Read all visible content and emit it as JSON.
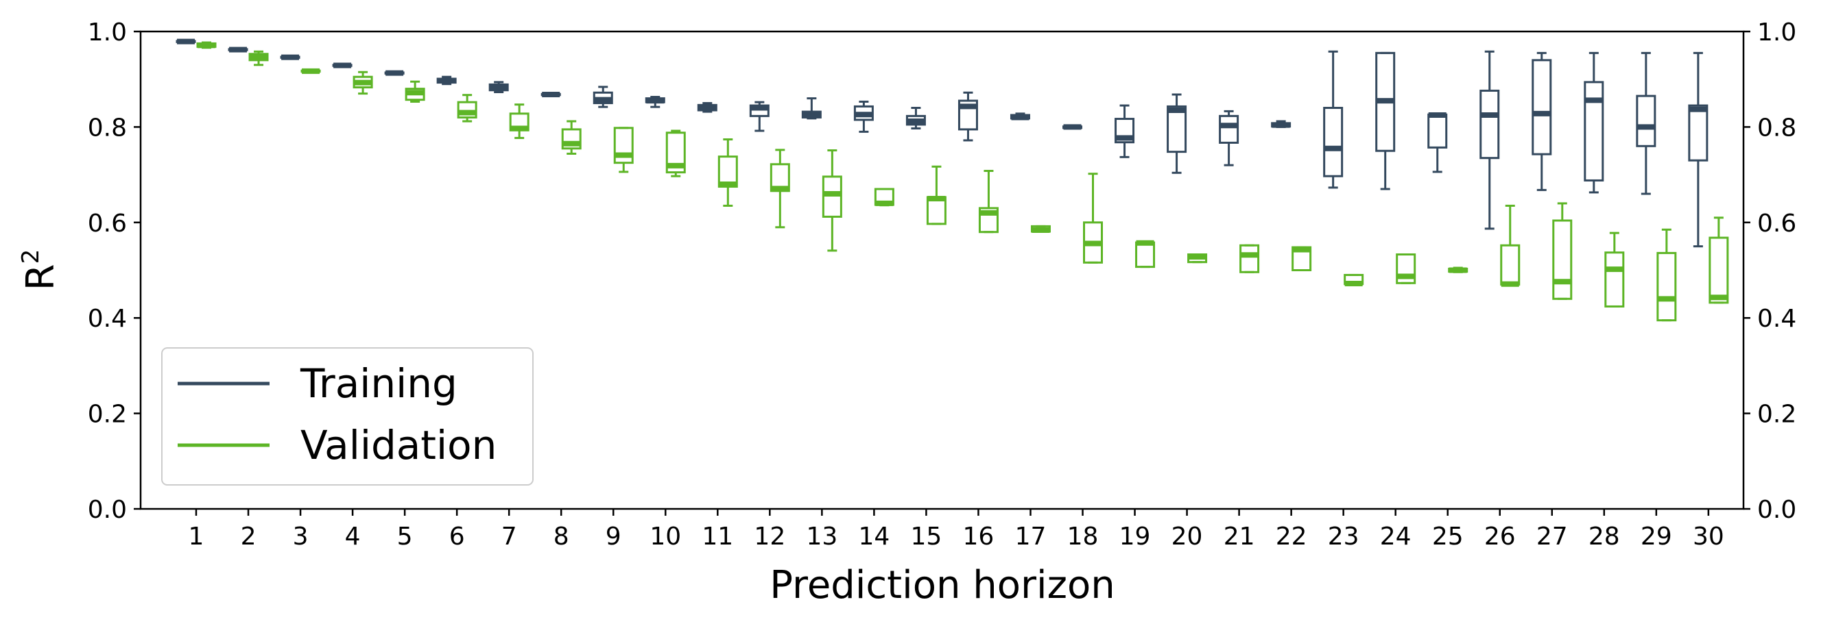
{
  "chart_data": {
    "type": "box",
    "xlabel": "Prediction horizon",
    "ylabel": "R",
    "ylabel_superscript": "2",
    "categories": [
      "1",
      "2",
      "3",
      "4",
      "5",
      "6",
      "7",
      "8",
      "9",
      "10",
      "11",
      "12",
      "13",
      "14",
      "15",
      "16",
      "17",
      "18",
      "19",
      "20",
      "21",
      "22",
      "23",
      "24",
      "25",
      "26",
      "27",
      "28",
      "29",
      "30"
    ],
    "ylim": [
      0.0,
      1.0
    ],
    "yticks": [
      "0.0",
      "0.2",
      "0.4",
      "0.6",
      "0.8",
      "1.0"
    ],
    "right_axis_ticks": true,
    "grid": false,
    "legend_position": "lower-left",
    "series": [
      {
        "name": "Training",
        "color": "#34495e",
        "boxes": [
          {
            "x": "1",
            "min": 0.978,
            "q1": 0.978,
            "median": 0.979,
            "q3": 0.98,
            "max": 0.981
          },
          {
            "x": "2",
            "min": 0.96,
            "q1": 0.961,
            "median": 0.962,
            "q3": 0.963,
            "max": 0.964
          },
          {
            "x": "3",
            "min": 0.944,
            "q1": 0.945,
            "median": 0.946,
            "q3": 0.947,
            "max": 0.948
          },
          {
            "x": "4",
            "min": 0.927,
            "q1": 0.928,
            "median": 0.929,
            "q3": 0.93,
            "max": 0.931
          },
          {
            "x": "5",
            "min": 0.911,
            "q1": 0.912,
            "median": 0.913,
            "q3": 0.914,
            "max": 0.915
          },
          {
            "x": "6",
            "min": 0.89,
            "q1": 0.893,
            "median": 0.897,
            "q3": 0.901,
            "max": 0.905
          },
          {
            "x": "7",
            "min": 0.873,
            "q1": 0.877,
            "median": 0.882,
            "q3": 0.889,
            "max": 0.894
          },
          {
            "x": "8",
            "min": 0.866,
            "q1": 0.867,
            "median": 0.868,
            "q3": 0.869,
            "max": 0.87
          },
          {
            "x": "9",
            "min": 0.842,
            "q1": 0.85,
            "median": 0.857,
            "q3": 0.872,
            "max": 0.884
          },
          {
            "x": "10",
            "min": 0.842,
            "q1": 0.852,
            "median": 0.855,
            "q3": 0.86,
            "max": 0.863
          },
          {
            "x": "11",
            "min": 0.832,
            "q1": 0.835,
            "median": 0.84,
            "q3": 0.846,
            "max": 0.85
          },
          {
            "x": "12",
            "min": 0.792,
            "q1": 0.823,
            "median": 0.84,
            "q3": 0.845,
            "max": 0.852
          },
          {
            "x": "13",
            "min": 0.818,
            "q1": 0.82,
            "median": 0.826,
            "q3": 0.832,
            "max": 0.86
          },
          {
            "x": "14",
            "min": 0.79,
            "q1": 0.815,
            "median": 0.826,
            "q3": 0.843,
            "max": 0.853
          },
          {
            "x": "15",
            "min": 0.797,
            "q1": 0.805,
            "median": 0.812,
            "q3": 0.823,
            "max": 0.84
          },
          {
            "x": "16",
            "min": 0.772,
            "q1": 0.795,
            "median": 0.843,
            "q3": 0.855,
            "max": 0.872
          },
          {
            "x": "17",
            "min": 0.817,
            "q1": 0.818,
            "median": 0.82,
            "q3": 0.825,
            "max": 0.828
          },
          {
            "x": "18",
            "min": 0.797,
            "q1": 0.798,
            "median": 0.8,
            "q3": 0.801,
            "max": 0.802
          },
          {
            "x": "19",
            "min": 0.737,
            "q1": 0.768,
            "median": 0.777,
            "q3": 0.817,
            "max": 0.845
          },
          {
            "x": "20",
            "min": 0.704,
            "q1": 0.748,
            "median": 0.835,
            "q3": 0.843,
            "max": 0.868
          },
          {
            "x": "21",
            "min": 0.72,
            "q1": 0.767,
            "median": 0.803,
            "q3": 0.823,
            "max": 0.833
          },
          {
            "x": "22",
            "min": 0.8,
            "q1": 0.801,
            "median": 0.804,
            "q3": 0.808,
            "max": 0.812
          },
          {
            "x": "23",
            "min": 0.673,
            "q1": 0.697,
            "median": 0.755,
            "q3": 0.84,
            "max": 0.958
          },
          {
            "x": "24",
            "min": 0.67,
            "q1": 0.75,
            "median": 0.855,
            "q3": 0.955,
            "max": 0.955
          },
          {
            "x": "25",
            "min": 0.706,
            "q1": 0.757,
            "median": 0.825,
            "q3": 0.826,
            "max": 0.826
          },
          {
            "x": "26",
            "min": 0.587,
            "q1": 0.735,
            "median": 0.825,
            "q3": 0.876,
            "max": 0.958
          },
          {
            "x": "27",
            "min": 0.668,
            "q1": 0.743,
            "median": 0.828,
            "q3": 0.94,
            "max": 0.955
          },
          {
            "x": "28",
            "min": 0.663,
            "q1": 0.688,
            "median": 0.856,
            "q3": 0.894,
            "max": 0.955
          },
          {
            "x": "29",
            "min": 0.66,
            "q1": 0.76,
            "median": 0.8,
            "q3": 0.865,
            "max": 0.955
          },
          {
            "x": "30",
            "min": 0.55,
            "q1": 0.73,
            "median": 0.837,
            "q3": 0.845,
            "max": 0.955
          }
        ]
      },
      {
        "name": "Validation",
        "color": "#5db526",
        "boxes": [
          {
            "x": "1",
            "min": 0.966,
            "q1": 0.968,
            "median": 0.971,
            "q3": 0.975,
            "max": 0.977
          },
          {
            "x": "2",
            "min": 0.93,
            "q1": 0.94,
            "median": 0.946,
            "q3": 0.953,
            "max": 0.958
          },
          {
            "x": "3",
            "min": 0.915,
            "q1": 0.916,
            "median": 0.917,
            "q3": 0.918,
            "max": 0.919
          },
          {
            "x": "4",
            "min": 0.87,
            "q1": 0.883,
            "median": 0.893,
            "q3": 0.905,
            "max": 0.915
          },
          {
            "x": "5",
            "min": 0.853,
            "q1": 0.857,
            "median": 0.872,
            "q3": 0.88,
            "max": 0.895
          },
          {
            "x": "6",
            "min": 0.812,
            "q1": 0.82,
            "median": 0.83,
            "q3": 0.852,
            "max": 0.867
          },
          {
            "x": "7",
            "min": 0.777,
            "q1": 0.793,
            "median": 0.797,
            "q3": 0.828,
            "max": 0.847
          },
          {
            "x": "8",
            "min": 0.744,
            "q1": 0.755,
            "median": 0.765,
            "q3": 0.795,
            "max": 0.812
          },
          {
            "x": "9",
            "min": 0.706,
            "q1": 0.725,
            "median": 0.741,
            "q3": 0.798,
            "max": 0.798
          },
          {
            "x": "10",
            "min": 0.697,
            "q1": 0.705,
            "median": 0.719,
            "q3": 0.788,
            "max": 0.792
          },
          {
            "x": "11",
            "min": 0.635,
            "q1": 0.675,
            "median": 0.68,
            "q3": 0.738,
            "max": 0.774
          },
          {
            "x": "12",
            "min": 0.59,
            "q1": 0.666,
            "median": 0.671,
            "q3": 0.722,
            "max": 0.752
          },
          {
            "x": "13",
            "min": 0.541,
            "q1": 0.612,
            "median": 0.66,
            "q3": 0.696,
            "max": 0.751
          },
          {
            "x": "14",
            "min": 0.636,
            "q1": 0.637,
            "median": 0.64,
            "q3": 0.67,
            "max": 0.67
          },
          {
            "x": "15",
            "min": 0.597,
            "q1": 0.597,
            "median": 0.65,
            "q3": 0.653,
            "max": 0.717
          },
          {
            "x": "16",
            "min": 0.58,
            "q1": 0.58,
            "median": 0.62,
            "q3": 0.63,
            "max": 0.708
          },
          {
            "x": "17",
            "min": 0.581,
            "q1": 0.581,
            "median": 0.584,
            "q3": 0.592,
            "max": 0.592
          },
          {
            "x": "18",
            "min": 0.516,
            "q1": 0.516,
            "median": 0.556,
            "q3": 0.6,
            "max": 0.702
          },
          {
            "x": "19",
            "min": 0.507,
            "q1": 0.507,
            "median": 0.557,
            "q3": 0.558,
            "max": 0.558
          },
          {
            "x": "20",
            "min": 0.517,
            "q1": 0.517,
            "median": 0.528,
            "q3": 0.533,
            "max": 0.533
          },
          {
            "x": "21",
            "min": 0.496,
            "q1": 0.496,
            "median": 0.532,
            "q3": 0.552,
            "max": 0.552
          },
          {
            "x": "22",
            "min": 0.5,
            "q1": 0.5,
            "median": 0.543,
            "q3": 0.548,
            "max": 0.548
          },
          {
            "x": "23",
            "min": 0.471,
            "q1": 0.471,
            "median": 0.472,
            "q3": 0.49,
            "max": 0.49
          },
          {
            "x": "24",
            "min": 0.473,
            "q1": 0.473,
            "median": 0.487,
            "q3": 0.533,
            "max": 0.533
          },
          {
            "x": "25",
            "min": 0.496,
            "q1": 0.497,
            "median": 0.5,
            "q3": 0.503,
            "max": 0.505
          },
          {
            "x": "26",
            "min": 0.47,
            "q1": 0.47,
            "median": 0.471,
            "q3": 0.552,
            "max": 0.635
          },
          {
            "x": "27",
            "min": 0.44,
            "q1": 0.44,
            "median": 0.476,
            "q3": 0.604,
            "max": 0.64
          },
          {
            "x": "28",
            "min": 0.424,
            "q1": 0.424,
            "median": 0.502,
            "q3": 0.537,
            "max": 0.578
          },
          {
            "x": "29",
            "min": 0.395,
            "q1": 0.395,
            "median": 0.44,
            "q3": 0.536,
            "max": 0.585
          },
          {
            "x": "30",
            "min": 0.432,
            "q1": 0.432,
            "median": 0.443,
            "q3": 0.568,
            "max": 0.61
          }
        ]
      }
    ]
  }
}
